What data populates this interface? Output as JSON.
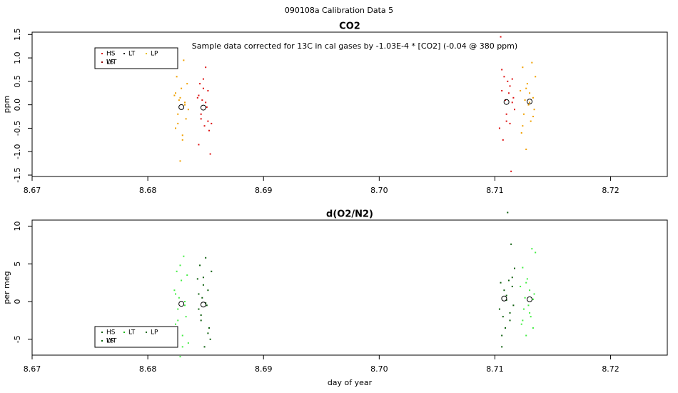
{
  "title": "090108a   Calibration Data 5",
  "chart_data": [
    {
      "type": "scatter",
      "title": "CO2",
      "y_label": "ppm",
      "annotation": "Sample data corrected for 13C in cal gases by -1.03E-4 * [CO2] (-0.04 @ 380 ppm)",
      "xlim": [
        8.67,
        8.7249
      ],
      "ylim": [
        -1.53,
        1.55
      ],
      "xticks": [
        8.67,
        8.68,
        8.69,
        {
          "value": 8.7,
          "label": "8.70"
        },
        8.71,
        8.72
      ],
      "yticks": [
        1.5,
        {
          "value": 1,
          "label": "1.0"
        },
        0.5,
        {
          "value": 0,
          "label": "0.0"
        },
        -0.5,
        {
          "value": -1,
          "label": "-1.0"
        },
        -1.5
      ],
      "legend": "top-left",
      "series": [
        {
          "name": "HS",
          "color": "#dd1111",
          "x": [
            8.6843,
            8.6844,
            8.6845,
            8.6846,
            8.6847,
            8.6848,
            8.6849,
            8.685,
            8.6851,
            8.6852,
            8.6853,
            8.6854,
            8.6855,
            8.6844,
            8.6846,
            8.6848,
            8.685,
            8.6852,
            8.7104,
            8.7105,
            8.7106,
            8.7107,
            8.7108,
            8.7109,
            8.711,
            8.7111,
            8.7112,
            8.7113,
            8.7114,
            8.7115,
            8.7116,
            8.7117,
            8.7106,
            8.711,
            8.7113,
            8.7115
          ],
          "values": [
            0.15,
            -0.85,
            0.45,
            -0.3,
            0.1,
            0.35,
            -0.45,
            0.8,
            -0.05,
            0.3,
            -0.55,
            -1.05,
            -0.4,
            0.2,
            -0.2,
            0.55,
            0.05,
            -0.35,
            -0.5,
            1.45,
            0.3,
            -0.75,
            0.6,
            0.1,
            -0.2,
            0.5,
            0.25,
            -0.4,
            -1.42,
            0.55,
            0.15,
            -0.1,
            0.75,
            -0.35,
            0.4,
            0.05
          ]
        },
        {
          "name": "LS",
          "color": "#f0a000",
          "x": [
            8.6823,
            8.6824,
            8.6825,
            8.6826,
            8.6827,
            8.6828,
            8.6829,
            8.683,
            8.6831,
            8.6832,
            8.6833,
            8.6834,
            8.6835,
            8.6824,
            8.6826,
            8.6828,
            8.683,
            8.6832,
            8.7122,
            8.7123,
            8.7124,
            8.7125,
            8.7126,
            8.7127,
            8.7128,
            8.7129,
            8.713,
            8.7131,
            8.7132,
            8.7133,
            8.7134,
            8.7135,
            8.7124,
            8.7127,
            8.713,
            8.7133
          ],
          "values": [
            0.2,
            -0.5,
            0.6,
            -0.2,
            0.1,
            -1.2,
            0.35,
            -0.65,
            0.95,
            0.05,
            -0.3,
            0.45,
            -0.1,
            0.25,
            -0.4,
            0.15,
            -0.75,
            0,
            0.3,
            -0.6,
            0.8,
            -0.2,
            0.1,
            -0.95,
            0.45,
            0,
            0.25,
            -0.35,
            0.9,
            0.15,
            -0.1,
            0.6,
            -0.45,
            0.35,
            0.05,
            -0.25
          ]
        },
        {
          "name": "LT",
          "color": "#222222",
          "x": [],
          "values": []
        },
        {
          "name": "WT",
          "color": "#8b0000",
          "x": [],
          "values": []
        },
        {
          "name": "LP",
          "color": "#e8c000",
          "x": [],
          "values": []
        }
      ],
      "mean_x": [
        8.6829,
        8.6848,
        8.711,
        8.713
      ],
      "mean_values": [
        -0.05,
        -0.06,
        0.06,
        0.07
      ]
    },
    {
      "type": "scatter",
      "title": "d(O2/N2)",
      "y_label": "per meg",
      "x_label": "day of year",
      "xlim": [
        8.67,
        8.7249
      ],
      "ylim": [
        -7.1,
        10.8
      ],
      "xticks": [
        8.67,
        8.68,
        8.69,
        {
          "value": 8.7,
          "label": "8.70"
        },
        8.71,
        8.72
      ],
      "yticks": [
        10,
        5,
        0,
        -5
      ],
      "legend": "bottom-left",
      "series": [
        {
          "name": "HS",
          "color": "#0b5e0b",
          "x": [
            8.6843,
            8.6844,
            8.6845,
            8.6846,
            8.6847,
            8.6848,
            8.6849,
            8.685,
            8.6851,
            8.6852,
            8.6853,
            8.6854,
            8.6855,
            8.6844,
            8.6846,
            8.6848,
            8.685,
            8.6852,
            8.7104,
            8.7105,
            8.7106,
            8.7107,
            8.7108,
            8.7109,
            8.711,
            8.7111,
            8.7112,
            8.7113,
            8.7114,
            8.7115,
            8.7116,
            8.7117,
            8.7106,
            8.711,
            8.7113,
            8.7115
          ],
          "values": [
            3,
            -1,
            4.8,
            -2.5,
            0.5,
            2.2,
            -6,
            5.8,
            -0.5,
            1.5,
            -3.5,
            -5,
            4,
            1,
            -1.8,
            3.2,
            -0.2,
            -4.2,
            -1,
            2.5,
            -6,
            -2,
            1.5,
            -3.5,
            0.2,
            11.8,
            2.8,
            -1.5,
            7.6,
            3.2,
            -0.5,
            4.4,
            -4.5,
            0.8,
            -2.5,
            2
          ]
        },
        {
          "name": "LS",
          "color": "#44ee44",
          "x": [
            8.6823,
            8.6824,
            8.6825,
            8.6826,
            8.6827,
            8.6828,
            8.6829,
            8.683,
            8.6831,
            8.6832,
            8.6833,
            8.6834,
            8.6835,
            8.6824,
            8.6826,
            8.6828,
            8.683,
            8.6832,
            8.7122,
            8.7123,
            8.7124,
            8.7125,
            8.7126,
            8.7127,
            8.7128,
            8.7129,
            8.713,
            8.7131,
            8.7132,
            8.7133,
            8.7134,
            8.7135,
            8.7124,
            8.7127,
            8.713,
            8.7133
          ],
          "values": [
            1.5,
            -3,
            4,
            -1,
            0.5,
            -7.3,
            2.8,
            -4.5,
            6,
            -0.5,
            -2,
            3.5,
            -5.5,
            1,
            -2.5,
            4.8,
            -6,
            0,
            2,
            -3,
            4.5,
            -1,
            0.5,
            -4.5,
            3,
            -0.5,
            1.5,
            -2,
            7,
            -3.5,
            1,
            6.5,
            -2.5,
            2.5,
            -1.5,
            0.3
          ]
        },
        {
          "name": "LT",
          "color": "#22bb22",
          "x": [],
          "values": []
        },
        {
          "name": "WT",
          "color": "#006400",
          "x": [],
          "values": []
        },
        {
          "name": "LP",
          "color": "#116611",
          "x": [],
          "values": []
        }
      ],
      "mean_x": [
        8.6829,
        8.6848,
        8.7108,
        8.713
      ],
      "mean_values": [
        -0.3,
        -0.4,
        0.4,
        0.3
      ]
    }
  ]
}
